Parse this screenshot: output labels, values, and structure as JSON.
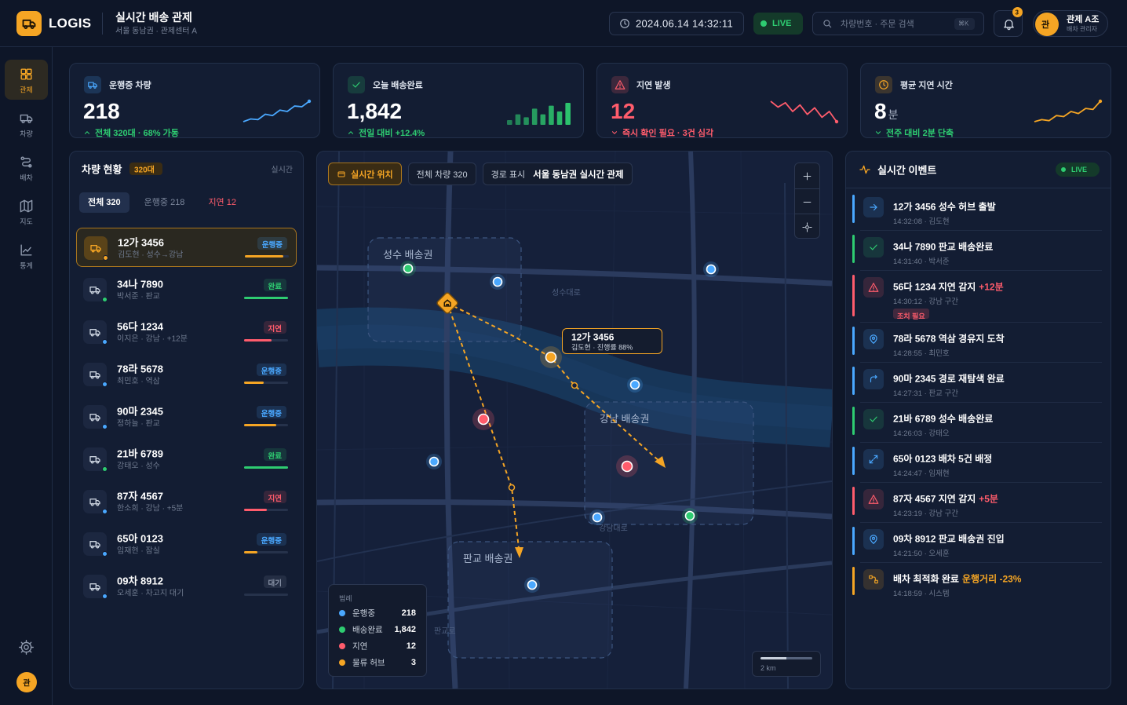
{
  "header": {
    "brand": "LOGIS",
    "title": "실시간 배송 관제",
    "subtitle": "서울 동남권 · 관제센터 A",
    "datetime": "2024.06.14 14:32:11",
    "live": "LIVE",
    "search_placeholder": "차량번호 · 주문 검색",
    "shortcut": "⌘K",
    "notifications": "3",
    "user": {
      "avatar": "관",
      "name": "관제 A조",
      "role": "배차 관리자"
    }
  },
  "sidebar": {
    "nav": [
      {
        "label": "관제",
        "icon": "grid",
        "active": true
      },
      {
        "label": "차량",
        "icon": "truck"
      },
      {
        "label": "배차",
        "icon": "route"
      },
      {
        "label": "지도",
        "icon": "map"
      },
      {
        "label": "통계",
        "icon": "chart"
      }
    ],
    "avatar": "관"
  },
  "kpis": [
    {
      "title": "운행중 차량",
      "value": "218",
      "note": "전체 320대 · 68% 가동",
      "direction": "up",
      "color": "#4aa8ff",
      "value_color": "#ffffff",
      "note_color": "#2ecc71",
      "icon": "truck",
      "chart": "line",
      "trend": [
        30,
        34,
        33,
        41,
        39,
        47,
        45,
        53,
        52,
        60
      ]
    },
    {
      "title": "오늘 배송완료",
      "value": "1,842",
      "note": "전일 대비 +12.4%",
      "direction": "up",
      "color": "#2ecc71",
      "value_color": "#ffffff",
      "note_color": "#2ecc71",
      "icon": "check",
      "chart": "bar",
      "trend": [
        4,
        6,
        5,
        8,
        6,
        9,
        7,
        10
      ]
    },
    {
      "title": "지연 발생",
      "value": "12",
      "note": "즉시 확인 필요 · 3건 심각",
      "direction": "down",
      "color": "#ff5c6c",
      "value_color": "#ff5c6c",
      "note_color": "#ff5c6c",
      "icon": "alert",
      "chart": "line",
      "trend": [
        58,
        50,
        56,
        44,
        53,
        40,
        49,
        36,
        44,
        30
      ]
    },
    {
      "title": "평균 지연 시간",
      "value": "8",
      "unit": "분",
      "note": "전주 대비 2분 단축",
      "direction": "down",
      "color": "#f5a524",
      "value_color": "#ffffff",
      "note_color": "#2ecc71",
      "icon": "clock",
      "chart": "line",
      "trend": [
        30,
        32,
        31,
        36,
        35,
        40,
        38,
        43,
        42,
        50
      ]
    }
  ],
  "vehicles": {
    "title": "차량 현황",
    "badge": "320대",
    "live": "실시간",
    "tabs": [
      {
        "label": "전체 320",
        "active": true,
        "color": "#ffffff"
      },
      {
        "label": "운행중 218",
        "color": "#7c879c"
      },
      {
        "label": "지연 12",
        "color": "#ff5c6c"
      }
    ],
    "items": [
      {
        "plate": "12가 3456",
        "detail": "김도현 · 성수→강남",
        "status": "운행중",
        "status_color": "#4aa8ff",
        "progress": 88,
        "bar_color": "#f5a524",
        "dot_color": "#f5a524",
        "selected": true
      },
      {
        "plate": "34나 7890",
        "detail": "박서준 · 판교",
        "status": "완료",
        "status_color": "#2ecc71",
        "progress": 100,
        "bar_color": "#2ecc71",
        "dot_color": "#2ecc71"
      },
      {
        "plate": "56다 1234",
        "detail": "이지은 · 강남 · +12분",
        "status": "지연",
        "status_color": "#ff5c6c",
        "progress": 62,
        "bar_color": "#ff5c6c",
        "dot_color": "#4aa8ff"
      },
      {
        "plate": "78라 5678",
        "detail": "최민호 · 역삼",
        "status": "운행중",
        "status_color": "#4aa8ff",
        "progress": 45,
        "bar_color": "#f5a524",
        "dot_color": "#4aa8ff"
      },
      {
        "plate": "90마 2345",
        "detail": "정하늘 · 판교",
        "status": "운행중",
        "status_color": "#4aa8ff",
        "progress": 73,
        "bar_color": "#f5a524",
        "dot_color": "#4aa8ff"
      },
      {
        "plate": "21바 6789",
        "detail": "강태오 · 성수",
        "status": "완료",
        "status_color": "#2ecc71",
        "progress": 100,
        "bar_color": "#2ecc71",
        "dot_color": "#2ecc71"
      },
      {
        "plate": "87자 4567",
        "detail": "한소희 · 강남 · +5분",
        "status": "지연",
        "status_color": "#ff5c6c",
        "progress": 52,
        "bar_color": "#ff5c6c",
        "dot_color": "#4aa8ff"
      },
      {
        "plate": "65아 0123",
        "detail": "임재현 · 잠실",
        "status": "운행중",
        "status_color": "#4aa8ff",
        "progress": 30,
        "bar_color": "#f5a524",
        "dot_color": "#4aa8ff"
      },
      {
        "plate": "09차 8912",
        "detail": "오세훈 · 차고지 대기",
        "status": "대기",
        "status_color": "#8892a6",
        "progress": 0,
        "bar_color": "#8892a6",
        "dot_color": "#4aa8ff"
      }
    ]
  },
  "map": {
    "tabs": [
      {
        "label": "실시간 위치",
        "active": true
      },
      {
        "label": "전체 차량 320"
      },
      {
        "label": "경로 표시"
      }
    ],
    "title": "서울 동남권 실시간 관제",
    "zones": [
      "성수 배송권",
      "강남 배송권",
      "판교 배송권"
    ],
    "roads": [
      "성수대로",
      "강남대로",
      "판교로"
    ],
    "tooltip": {
      "plate": "12가 3456",
      "detail": "김도현 · 진행률 88%"
    },
    "legend": {
      "title": "범례",
      "items": [
        {
          "label": "운행중",
          "value": "218",
          "color": "#4aa8ff"
        },
        {
          "label": "배송완료",
          "value": "1,842",
          "color": "#2ecc71"
        },
        {
          "label": "지연",
          "value": "12",
          "color": "#ff5c6c"
        },
        {
          "label": "물류 허브",
          "value": "3",
          "color": "#f5a524"
        }
      ]
    },
    "scale": "2 km"
  },
  "events": {
    "title": "실시간 이벤트",
    "live": "LIVE",
    "items": [
      {
        "text": "12가 3456 성수 허브 출발",
        "meta": "14:32:08 · 김도현",
        "color": "#4aa8ff",
        "icon": "arrow"
      },
      {
        "text": "34나 7890 판교 배송완료",
        "meta": "14:31:40 · 박서준",
        "color": "#2ecc71",
        "icon": "check"
      },
      {
        "text": "56다 1234 지연 감지",
        "highlight": "+12분",
        "meta": "14:30:12 · 강남 구간",
        "tag": "조치 필요",
        "color": "#ff5c6c",
        "icon": "alert"
      },
      {
        "text": "78라 5678 역삼 경유지 도착",
        "meta": "14:28:55 · 최민호",
        "color": "#4aa8ff",
        "icon": "pin"
      },
      {
        "text": "90마 2345 경로 재탐색 완료",
        "meta": "14:27:31 · 판교 구간",
        "color": "#4aa8ff",
        "icon": "reroute"
      },
      {
        "text": "21바 6789 성수 배송완료",
        "meta": "14:26:03 · 강태오",
        "color": "#2ecc71",
        "icon": "check"
      },
      {
        "text": "65아 0123 배차 5건 배정",
        "meta": "14:24:47 · 임재현",
        "color": "#4aa8ff",
        "icon": "assign"
      },
      {
        "text": "87자 4567 지연 감지",
        "highlight": "+5분",
        "meta": "14:23:19 · 강남 구간",
        "color": "#ff5c6c",
        "icon": "alert"
      },
      {
        "text": "09차 8912 판교 배송권 진입",
        "meta": "14:21:50 · 오세훈",
        "color": "#4aa8ff",
        "icon": "pin"
      },
      {
        "text": "배차 최적화 완료",
        "highlight": "운행거리 -23%",
        "meta": "14:18:59 · 시스템",
        "color": "#f5a524",
        "icon": "optimize"
      }
    ]
  }
}
